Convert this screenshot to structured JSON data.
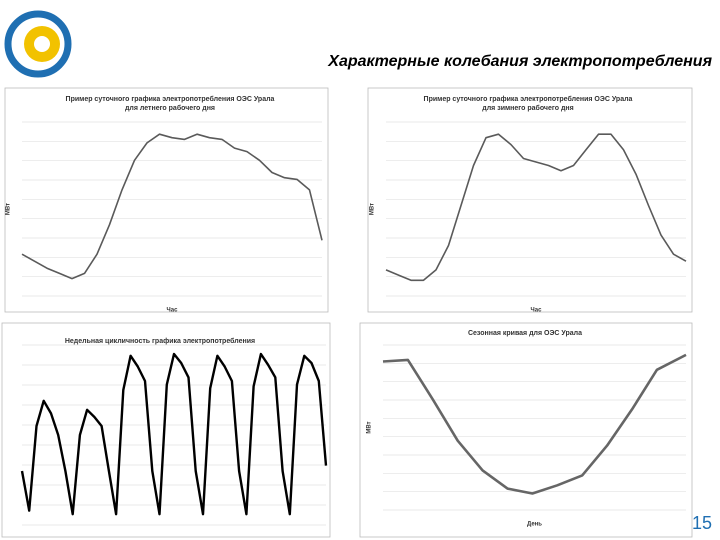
{
  "title": "Характерные колебания электропотребления",
  "page_number": "15",
  "chart_data": [
    {
      "type": "line",
      "title": "Пример суточного графика электропотребления ОЭС Урала для летнего рабочего дня",
      "ylabel": "МВт",
      "xlabel": "Час",
      "color": "#5a5a5a",
      "x": [
        0,
        1,
        2,
        3,
        4,
        5,
        6,
        7,
        8,
        9,
        10,
        11,
        12,
        13,
        14,
        15,
        16,
        17,
        18,
        19,
        20,
        21,
        22,
        23,
        24
      ],
      "values": [
        24,
        20,
        16,
        13,
        10,
        13,
        24,
        41,
        61,
        78,
        88,
        93,
        91,
        90,
        93,
        91,
        90,
        85,
        83,
        78,
        71,
        68,
        67,
        61,
        32
      ],
      "xlim": [
        0,
        24
      ],
      "ylim": [
        0,
        100
      ],
      "grid": true
    },
    {
      "type": "line",
      "title": "Пример суточного графика электропотребления ОЭС Урала для зимнего рабочего дня",
      "ylabel": "МВт",
      "xlabel": "Час",
      "color": "#5a5a5a",
      "x": [
        0,
        1,
        2,
        3,
        4,
        5,
        6,
        7,
        8,
        9,
        10,
        11,
        12,
        13,
        14,
        15,
        16,
        17,
        18,
        19,
        20,
        21,
        22,
        23,
        24
      ],
      "values": [
        15,
        12,
        9,
        9,
        15,
        29,
        52,
        75,
        91,
        93,
        87,
        79,
        77,
        75,
        72,
        75,
        84,
        93,
        93,
        84,
        70,
        52,
        35,
        24,
        20
      ],
      "xlim": [
        0,
        24
      ],
      "ylim": [
        0,
        100
      ],
      "grid": true
    },
    {
      "type": "line",
      "title": "Недельная цикличность графика электропотребления",
      "color": "#000000",
      "x": [
        0,
        4,
        8,
        12,
        16,
        20,
        24,
        28,
        32,
        36,
        40,
        44,
        48,
        52,
        56,
        60,
        64,
        68,
        72,
        76,
        80,
        84,
        88,
        92,
        96,
        100,
        104,
        108,
        112,
        116,
        120,
        124,
        128,
        132,
        136,
        140,
        144,
        148,
        152,
        156,
        160,
        164,
        168
      ],
      "values": [
        30,
        8,
        55,
        69,
        62,
        50,
        30,
        6,
        50,
        64,
        60,
        55,
        30,
        6,
        75,
        94,
        88,
        80,
        30,
        6,
        78,
        95,
        90,
        82,
        30,
        6,
        76,
        94,
        88,
        80,
        30,
        6,
        77,
        95,
        89,
        82,
        30,
        6,
        78,
        94,
        90,
        80,
        33
      ],
      "xlim": [
        0,
        168
      ],
      "ylim": [
        0,
        100
      ],
      "grid": true
    },
    {
      "type": "line",
      "title": "Сезонная кривая для ОЭС Урала",
      "ylabel": "МВт",
      "xlabel": "День",
      "color": "#666666",
      "x": [
        0,
        30,
        60,
        90,
        120,
        150,
        180,
        210,
        240,
        270,
        300,
        330,
        365
      ],
      "values": [
        90,
        91,
        67,
        42,
        24,
        13,
        10,
        15,
        21,
        39,
        61,
        85,
        94
      ],
      "xlim": [
        0,
        365
      ],
      "ylim": [
        0,
        100
      ],
      "grid": true
    }
  ]
}
